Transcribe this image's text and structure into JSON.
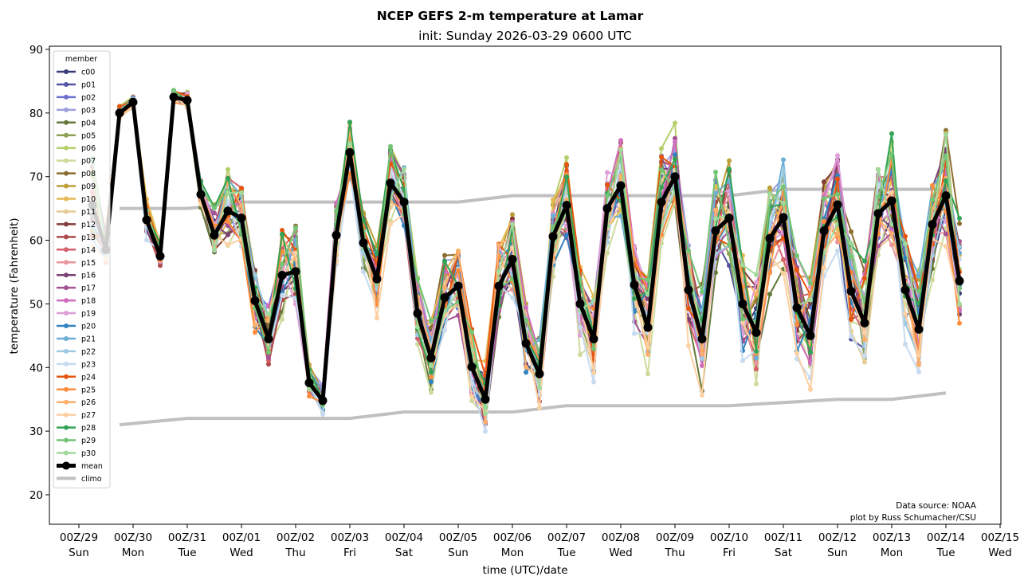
{
  "chart_data": {
    "type": "line",
    "title": "NCEP GEFS 2-m temperature at Lamar",
    "subtitle": "init: Sunday 2026-03-29 0600 UTC",
    "xlabel": "time (UTC)/date",
    "ylabel": "temperature (Fahrenheit)",
    "ylim": [
      15.5,
      90.5
    ],
    "yticks": [
      20,
      30,
      40,
      50,
      60,
      70,
      80,
      90
    ],
    "xlim_hours_from_00Z29": [
      -6,
      396
    ],
    "xticks": [
      {
        "label": "00Z/29",
        "day": "Sun",
        "hour": 0
      },
      {
        "label": "00Z/30",
        "day": "Mon",
        "hour": 24
      },
      {
        "label": "00Z/31",
        "day": "Tue",
        "hour": 48
      },
      {
        "label": "00Z/01",
        "day": "Wed",
        "hour": 72
      },
      {
        "label": "00Z/02",
        "day": "Thu",
        "hour": 96
      },
      {
        "label": "00Z/03",
        "day": "Fri",
        "hour": 120
      },
      {
        "label": "00Z/04",
        "day": "Sat",
        "hour": 144
      },
      {
        "label": "00Z/05",
        "day": "Sun",
        "hour": 168
      },
      {
        "label": "00Z/06",
        "day": "Mon",
        "hour": 192
      },
      {
        "label": "00Z/07",
        "day": "Tue",
        "hour": 216
      },
      {
        "label": "00Z/08",
        "day": "Wed",
        "hour": 240
      },
      {
        "label": "00Z/09",
        "day": "Thu",
        "hour": 264
      },
      {
        "label": "00Z/10",
        "day": "Fri",
        "hour": 288
      },
      {
        "label": "00Z/11",
        "day": "Sat",
        "hour": 312
      },
      {
        "label": "00Z/12",
        "day": "Sun",
        "hour": 336
      },
      {
        "label": "00Z/13",
        "day": "Mon",
        "hour": 360
      },
      {
        "label": "00Z/14",
        "day": "Tue",
        "hour": 384
      },
      {
        "label": "00Z/15",
        "day": "Wed",
        "hour": 408
      }
    ],
    "time_step_hours": 6,
    "first_hour": 6,
    "legend": {
      "title": "member",
      "placement": "upper-left"
    },
    "members": [
      {
        "name": "c00",
        "color": "#393b79"
      },
      {
        "name": "p01",
        "color": "#5254a3"
      },
      {
        "name": "p02",
        "color": "#6b6ecf"
      },
      {
        "name": "p03",
        "color": "#9c9ede"
      },
      {
        "name": "p04",
        "color": "#637939"
      },
      {
        "name": "p05",
        "color": "#8ca252"
      },
      {
        "name": "p06",
        "color": "#b5cf6b"
      },
      {
        "name": "p07",
        "color": "#cedb9c"
      },
      {
        "name": "p08",
        "color": "#8c6d31"
      },
      {
        "name": "p09",
        "color": "#bd9e39"
      },
      {
        "name": "p10",
        "color": "#e7ba52"
      },
      {
        "name": "p11",
        "color": "#e7cb94"
      },
      {
        "name": "p12",
        "color": "#843c39"
      },
      {
        "name": "p13",
        "color": "#ad494a"
      },
      {
        "name": "p14",
        "color": "#d6616b"
      },
      {
        "name": "p15",
        "color": "#e7969c"
      },
      {
        "name": "p16",
        "color": "#7b4173"
      },
      {
        "name": "p17",
        "color": "#a55194"
      },
      {
        "name": "p18",
        "color": "#ce6dbd"
      },
      {
        "name": "p19",
        "color": "#de9ed6"
      },
      {
        "name": "p20",
        "color": "#3182bd"
      },
      {
        "name": "p21",
        "color": "#6baed6"
      },
      {
        "name": "p22",
        "color": "#9ecae1"
      },
      {
        "name": "p23",
        "color": "#c6dbef"
      },
      {
        "name": "p24",
        "color": "#e6550d"
      },
      {
        "name": "p25",
        "color": "#fd8d3c"
      },
      {
        "name": "p26",
        "color": "#fdae6b"
      },
      {
        "name": "p27",
        "color": "#fdd0a2"
      },
      {
        "name": "p28",
        "color": "#31a354"
      },
      {
        "name": "p29",
        "color": "#74c476"
      },
      {
        "name": "p30",
        "color": "#a1d99b"
      }
    ],
    "mean": {
      "name": "mean",
      "color": "#000000",
      "values": [
        65.5,
        58.5,
        80.0,
        81.7,
        63.2,
        57.5,
        82.5,
        82.0,
        67.2,
        60.8,
        64.6,
        63.5,
        50.5,
        44.5,
        54.5,
        55.1,
        37.6,
        34.8,
        60.8,
        73.8,
        59.6,
        53.9,
        69.0,
        66.0,
        48.5,
        41.5,
        51.0,
        52.8,
        40.1,
        35.0,
        52.8,
        57.0,
        43.8,
        39.0,
        60.6,
        65.5,
        50.0,
        44.5,
        65.0,
        68.6,
        53.0,
        46.3,
        66.0,
        70.0,
        52.2,
        44.5,
        61.5,
        63.5,
        50.0,
        45.5,
        60.3,
        63.6,
        49.4,
        45.0,
        61.5,
        65.6,
        52.0,
        47.0,
        64.2,
        66.2,
        52.2,
        46.0,
        62.5,
        67.0,
        53.6
      ]
    },
    "climo": {
      "name": "climo",
      "color": "#c0c0c0",
      "series": [
        {
          "hours": [
            18,
            24,
            48,
            54,
            72,
            96,
            120,
            144,
            168,
            192,
            216,
            240,
            264,
            288,
            312,
            336,
            360,
            384
          ],
          "values": [
            65,
            65,
            65,
            65.2,
            66,
            66,
            66,
            66,
            66,
            67,
            67,
            67,
            67,
            67,
            68,
            68,
            68,
            68
          ]
        },
        {
          "hours": [
            18,
            48,
            72,
            96,
            120,
            144,
            168,
            192,
            216,
            240,
            264,
            288,
            312,
            336,
            360,
            384
          ],
          "values": [
            31,
            32,
            32,
            32,
            32,
            33,
            33,
            33,
            34,
            34,
            34,
            34,
            34.5,
            35,
            35,
            36
          ]
        }
      ]
    },
    "member_spread": [
      10,
      4,
      1.2,
      1.2,
      3.5,
      2.5,
      1.2,
      1.5,
      2.5,
      5,
      7,
      6.5,
      7,
      6.5,
      8,
      9,
      3,
      3,
      6,
      5,
      5.5,
      6,
      7,
      6.5,
      7,
      6,
      7,
      8,
      7,
      7,
      8,
      8,
      7,
      7,
      7,
      8,
      9,
      8,
      8,
      9,
      9,
      9,
      9,
      9,
      9,
      10,
      10,
      10,
      10,
      10,
      10,
      11,
      10,
      10,
      10,
      10,
      10,
      10,
      10,
      11,
      10,
      10,
      10,
      11,
      10
    ],
    "annotations": [
      "Data source: NOAA",
      "plot by Russ Schumacher/CSU"
    ]
  }
}
